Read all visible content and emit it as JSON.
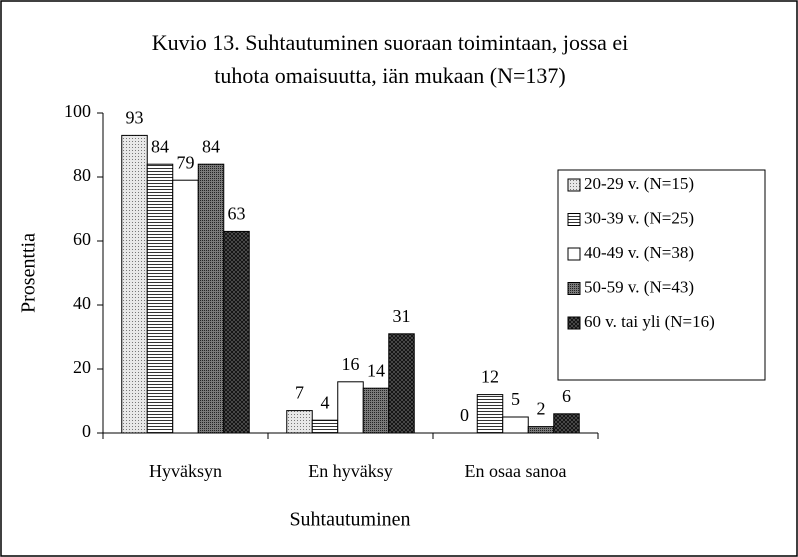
{
  "chart_data": {
    "type": "bar",
    "title": [
      "Kuvio 13. Suhtautuminen suoraan toimintaan, jossa ei",
      "tuhota omaisuutta, iän mukaan (N=137)"
    ],
    "x_label": "Suhtautuminen",
    "y_label": "Prosenttia",
    "categories": [
      "Hyväksyn",
      "En hyväksy",
      "En osaa sanoa"
    ],
    "series": [
      {
        "name": "20-29 v. (N=15)",
        "color": "#e8e8e8",
        "values": [
          93,
          7,
          0
        ]
      },
      {
        "name": "30-39 v. (N=25)",
        "color": "#ffffff",
        "values": [
          84,
          4,
          12
        ]
      },
      {
        "name": "40-49 v. (N=38)",
        "color": "#ffffff",
        "values": [
          79,
          16,
          5
        ]
      },
      {
        "name": "50-59 v. (N=43)",
        "color": "#7a7a7a",
        "values": [
          84,
          14,
          2
        ]
      },
      {
        "name": "60 v. tai yli (N=16)",
        "color": "#5a5a5a",
        "values": [
          63,
          31,
          6
        ]
      }
    ],
    "ylim": [
      0,
      100
    ],
    "yticks": [
      0,
      20,
      40,
      60,
      80,
      100
    ],
    "legend": "right"
  }
}
